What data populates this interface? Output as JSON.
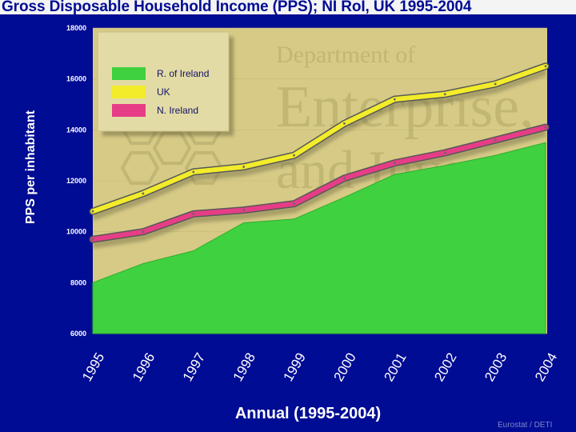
{
  "title": "Gross Disposable Household Income (PPS); NI RoI, UK 1995-2004",
  "source": "Eurostat / DETI",
  "watermark": {
    "lines": [
      "Department of",
      "Enterprise,",
      "and Investm"
    ]
  },
  "colors": {
    "background": "#000c94",
    "plot_area": "#d6ca86",
    "roi": "#3fd13f",
    "uk": "#f2ec2a",
    "ni": "#e63d86"
  },
  "chart_data": {
    "type": "area",
    "title": "Gross Disposable Household Income (PPS); NI RoI, UK 1995-2004",
    "xlabel": "Annual (1995-2004)",
    "ylabel": "PPS per inhabitant",
    "categories": [
      "1995",
      "1996",
      "1997",
      "1998",
      "1999",
      "2000",
      "2001",
      "2002",
      "2003",
      "2004"
    ],
    "ylim": [
      6000,
      18000
    ],
    "yticks": [
      "6000",
      "8000",
      "10000",
      "12000",
      "14000",
      "16000",
      "18000"
    ],
    "legend_position": "top-left",
    "series": [
      {
        "name": "R. of Ireland",
        "style": "area",
        "color": "#3fd13f",
        "values": [
          8000,
          8750,
          9250,
          10350,
          10500,
          11350,
          12250,
          12600,
          13000,
          13500
        ]
      },
      {
        "name": "UK",
        "style": "line",
        "color": "#f2ec2a",
        "values": [
          10800,
          11500,
          12350,
          12550,
          13000,
          14250,
          15200,
          15400,
          15800,
          16500
        ]
      },
      {
        "name": "N. Ireland",
        "style": "line",
        "color": "#e63d86",
        "values": [
          9700,
          10000,
          10700,
          10850,
          11100,
          12100,
          12700,
          13100,
          13600,
          14100
        ]
      }
    ]
  }
}
